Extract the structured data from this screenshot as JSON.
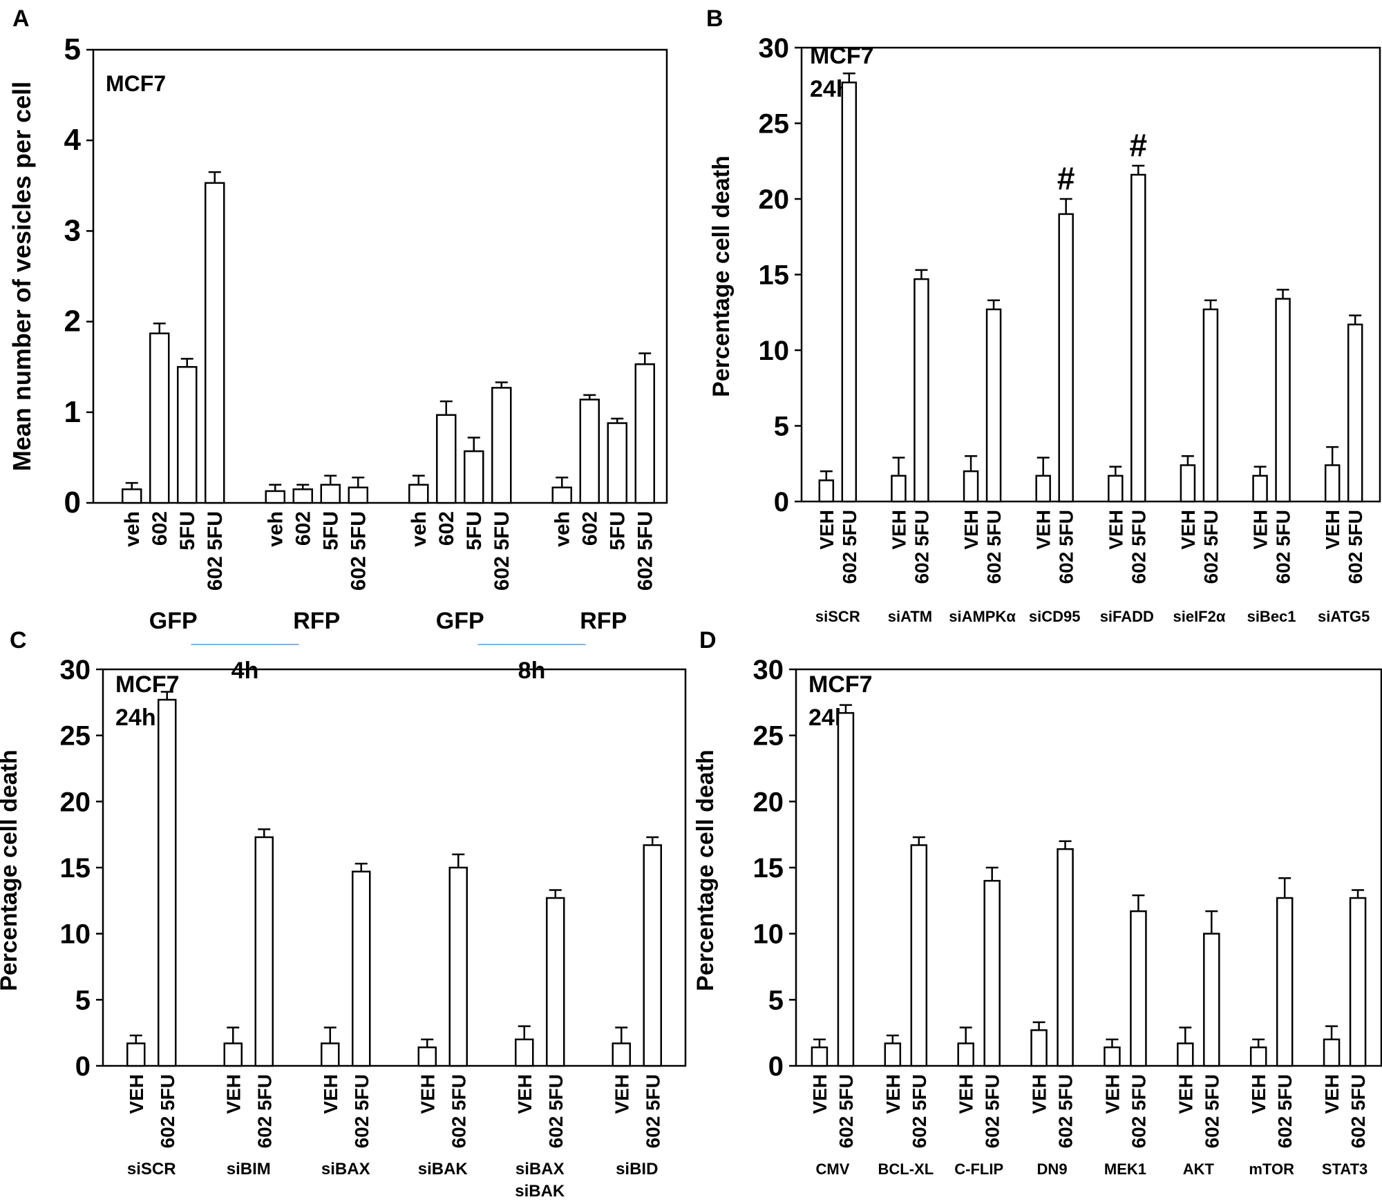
{
  "chart_data": [
    {
      "panel": "A",
      "type": "bar",
      "annotation": [
        "MCF7"
      ],
      "ylabel": "Mean number of vesicles per cell",
      "ylim": [
        0,
        5
      ],
      "yticks": [
        0,
        1,
        2,
        3,
        4,
        5
      ],
      "bar_labels": [
        "veh",
        "602",
        "5FU",
        "602 5FU"
      ],
      "groups": [
        {
          "label": "GFP",
          "values": [
            0.15,
            1.87,
            1.5,
            3.53
          ],
          "errors": [
            0.07,
            0.11,
            0.09,
            0.12
          ]
        },
        {
          "label": "RFP",
          "values": [
            0.13,
            0.15,
            0.2,
            0.17
          ],
          "errors": [
            0.07,
            0.05,
            0.1,
            0.11
          ]
        },
        {
          "label": "GFP",
          "values": [
            0.2,
            0.97,
            0.57,
            1.27
          ],
          "errors": [
            0.1,
            0.15,
            0.15,
            0.06
          ]
        },
        {
          "label": "RFP",
          "values": [
            0.17,
            1.14,
            0.88,
            1.53
          ],
          "errors": [
            0.11,
            0.05,
            0.05,
            0.12
          ]
        }
      ],
      "supergroups": [
        {
          "label": "4h",
          "groups": [
            0,
            1
          ]
        },
        {
          "label": "8h",
          "groups": [
            2,
            3
          ]
        }
      ],
      "supergroup_line_color": "#5b9bd5"
    },
    {
      "panel": "B",
      "type": "bar",
      "annotation": [
        "MCF7",
        "24h"
      ],
      "ylabel": "Percentage cell death",
      "ylim": [
        0,
        30
      ],
      "yticks": [
        0,
        5,
        10,
        15,
        20,
        25,
        30
      ],
      "bar_labels": [
        "VEH",
        "602 5FU"
      ],
      "groups": [
        {
          "label": "siSCR",
          "values": [
            1.4,
            27.7
          ],
          "errors": [
            0.6,
            0.6
          ]
        },
        {
          "label": "siATM",
          "values": [
            1.7,
            14.7
          ],
          "errors": [
            1.2,
            0.6
          ]
        },
        {
          "label": "siAMPKα",
          "values": [
            2.0,
            12.7
          ],
          "errors": [
            1.0,
            0.6
          ]
        },
        {
          "label": "siCD95",
          "values": [
            1.7,
            19.0
          ],
          "errors": [
            1.2,
            1.0
          ],
          "marks": [
            "",
            "#"
          ]
        },
        {
          "label": "siFADD",
          "values": [
            1.7,
            21.6
          ],
          "errors": [
            0.6,
            0.6
          ],
          "marks": [
            "",
            "#"
          ]
        },
        {
          "label": "sieIF2α",
          "values": [
            2.4,
            12.7
          ],
          "errors": [
            0.6,
            0.6
          ]
        },
        {
          "label": "siBec1",
          "values": [
            1.7,
            13.4
          ],
          "errors": [
            0.6,
            0.6
          ]
        },
        {
          "label": "siATG5",
          "values": [
            2.4,
            11.7
          ],
          "errors": [
            1.2,
            0.6
          ]
        }
      ]
    },
    {
      "panel": "C",
      "type": "bar",
      "annotation": [
        "MCF7",
        "24h"
      ],
      "ylabel": "Percentage cell death",
      "ylim": [
        0,
        30
      ],
      "yticks": [
        0,
        5,
        10,
        15,
        20,
        25,
        30
      ],
      "bar_labels": [
        "VEH",
        "602 5FU"
      ],
      "groups": [
        {
          "label": "siSCR",
          "values": [
            1.7,
            27.7
          ],
          "errors": [
            0.6,
            0.6
          ]
        },
        {
          "label": "siBIM",
          "values": [
            1.7,
            17.3
          ],
          "errors": [
            1.2,
            0.6
          ]
        },
        {
          "label": "siBAX",
          "values": [
            1.7,
            14.7
          ],
          "errors": [
            1.2,
            0.6
          ]
        },
        {
          "label": "siBAK",
          "values": [
            1.4,
            15.0
          ],
          "errors": [
            0.6,
            1.0
          ]
        },
        {
          "label": "siBAX\nsiBAK",
          "values": [
            2.0,
            12.7
          ],
          "errors": [
            1.0,
            0.6
          ]
        },
        {
          "label": "siBID",
          "values": [
            1.7,
            16.7
          ],
          "errors": [
            1.2,
            0.6
          ]
        }
      ]
    },
    {
      "panel": "D",
      "type": "bar",
      "annotation": [
        "MCF7",
        "24h"
      ],
      "ylabel": "Percentage cell death",
      "ylim": [
        0,
        30
      ],
      "yticks": [
        0,
        5,
        10,
        15,
        20,
        25,
        30
      ],
      "bar_labels": [
        "VEH",
        "602 5FU"
      ],
      "groups": [
        {
          "label": "CMV",
          "values": [
            1.4,
            26.7
          ],
          "errors": [
            0.6,
            0.6
          ]
        },
        {
          "label": "BCL-XL",
          "values": [
            1.7,
            16.7
          ],
          "errors": [
            0.6,
            0.6
          ]
        },
        {
          "label": "C-FLIP",
          "values": [
            1.7,
            14.0
          ],
          "errors": [
            1.2,
            1.0
          ]
        },
        {
          "label": "DN9",
          "values": [
            2.7,
            16.4
          ],
          "errors": [
            0.6,
            0.6
          ]
        },
        {
          "label": "MEK1",
          "values": [
            1.4,
            11.7
          ],
          "errors": [
            0.6,
            1.2
          ]
        },
        {
          "label": "AKT",
          "values": [
            1.7,
            10.0
          ],
          "errors": [
            1.2,
            1.7
          ]
        },
        {
          "label": "mTOR",
          "values": [
            1.4,
            12.7
          ],
          "errors": [
            0.6,
            1.5
          ]
        },
        {
          "label": "STAT3",
          "values": [
            2.0,
            12.7
          ],
          "errors": [
            1.0,
            0.6
          ]
        }
      ]
    }
  ]
}
